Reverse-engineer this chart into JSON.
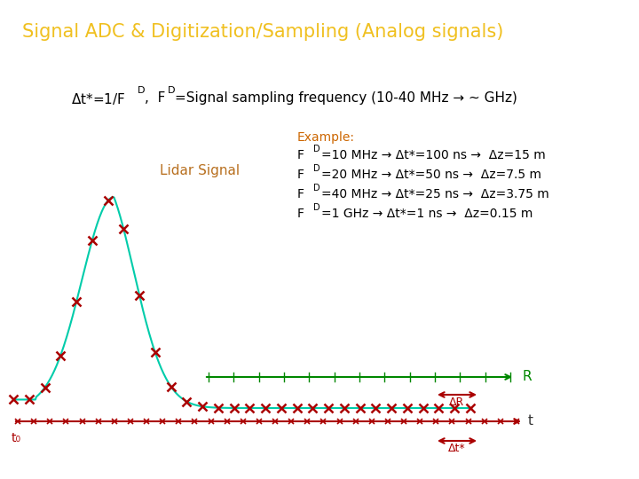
{
  "title": "Signal ADC & Digitization/Sampling (Analog signals)",
  "title_bg_color": "#1e3f6e",
  "title_text_color": "#f0c020",
  "bg_color": "#ffffff",
  "example_color": "#cc6600",
  "lidar_label": "Lidar Signal",
  "lidar_label_color": "#b87020",
  "signal_color": "#00ccaa",
  "marker_color": "#aa0000",
  "r_axis_color": "#008800",
  "r_label": "R",
  "t_label": "t",
  "t0_label": "t₀",
  "delta_r_label": "ΔR",
  "delta_t_label": "Δt*"
}
